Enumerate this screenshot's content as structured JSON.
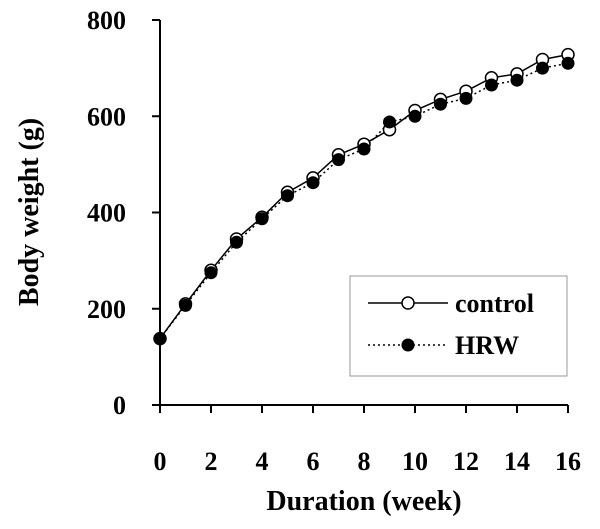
{
  "chart_data": {
    "type": "line",
    "xlabel": "Duration (week)",
    "ylabel": "Body weight  (g)",
    "xlim": [
      0,
      16
    ],
    "ylim": [
      0,
      800
    ],
    "x_ticks": [
      "0",
      "2",
      "4",
      "6",
      "8",
      "10",
      "12",
      "14",
      "16"
    ],
    "y_ticks": [
      "0",
      "200",
      "400",
      "600",
      "800"
    ],
    "grid": false,
    "legend_position": "bottom-right",
    "x": [
      0,
      1,
      2,
      3,
      4,
      5,
      6,
      7,
      8,
      9,
      10,
      11,
      12,
      13,
      14,
      15,
      16
    ],
    "series": [
      {
        "name": "control",
        "marker": "open-circle",
        "line": "solid",
        "values": [
          138,
          210,
          280,
          345,
          390,
          442,
          472,
          520,
          542,
          572,
          612,
          635,
          652,
          680,
          688,
          718,
          728
        ]
      },
      {
        "name": "HRW",
        "marker": "filled-circle",
        "line": "dotted",
        "values": [
          138,
          207,
          275,
          338,
          387,
          435,
          462,
          510,
          532,
          588,
          600,
          625,
          637,
          665,
          675,
          700,
          710
        ]
      }
    ]
  }
}
